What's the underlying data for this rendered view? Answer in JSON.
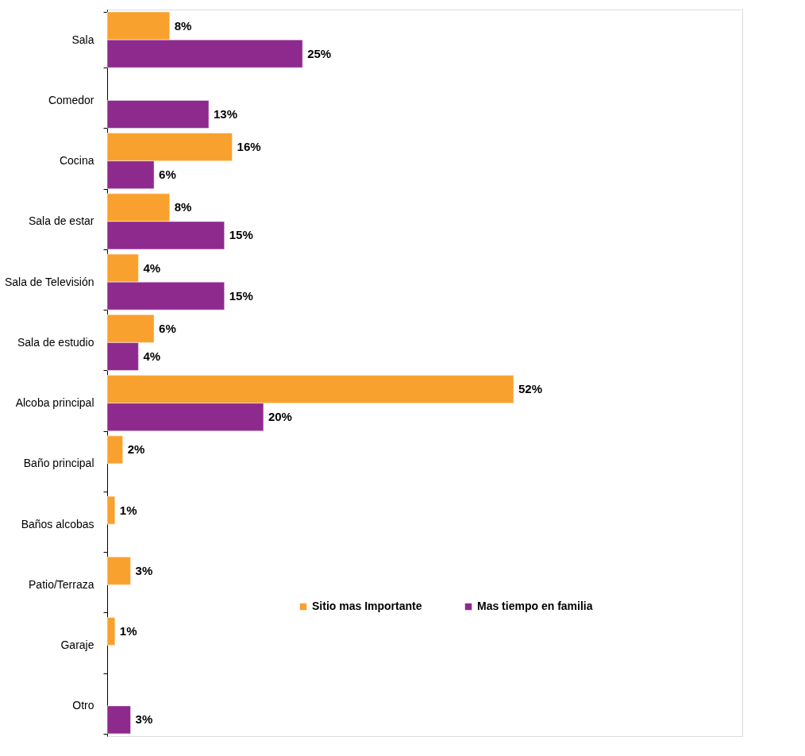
{
  "chart_data": {
    "type": "bar",
    "orientation": "horizontal",
    "categories": [
      "Sala",
      "Comedor",
      "Cocina",
      "Sala de estar",
      "Sala de Televisión",
      "Sala de estudio",
      "Alcoba principal",
      "Baño principal",
      "Baños alcobas",
      "Patio/Terraza",
      "Garaje",
      "Otro"
    ],
    "series": [
      {
        "name": "Sitio mas Importante",
        "color": "#f9a12e",
        "values": [
          8,
          null,
          16,
          8,
          4,
          6,
          52,
          2,
          1,
          3,
          1,
          null
        ],
        "value_labels": [
          "8%",
          null,
          "16%",
          "8%",
          "4%",
          "6%",
          "52%",
          "2%",
          "1%",
          "3%",
          "1%",
          null
        ]
      },
      {
        "name": "Mas tiempo en familia",
        "color": "#8e2a8e",
        "values": [
          25,
          13,
          6,
          15,
          15,
          4,
          20,
          null,
          null,
          null,
          null,
          3
        ],
        "value_labels": [
          "25%",
          "13%",
          "6%",
          "15%",
          "15%",
          "4%",
          "20%",
          null,
          null,
          null,
          null,
          "3%"
        ]
      }
    ],
    "legend": "bottom right",
    "grid": false
  }
}
